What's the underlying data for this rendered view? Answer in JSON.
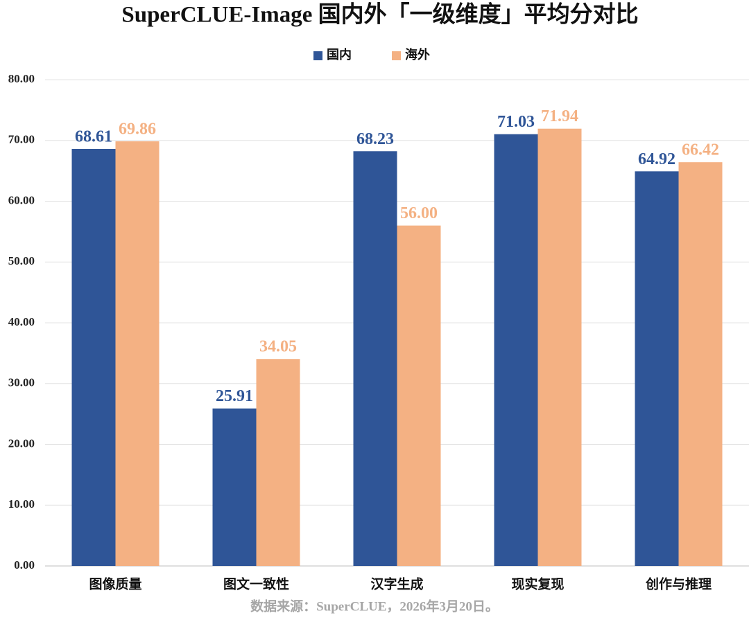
{
  "chart_data": {
    "type": "bar",
    "title": "SuperCLUE-Image 国内外「一级维度」平均分对比",
    "categories": [
      "图像质量",
      "图文一致性",
      "汉字生成",
      "现实复现",
      "创作与推理"
    ],
    "series": [
      {
        "name": "国内",
        "color": "#2f5597",
        "values": [
          68.61,
          25.91,
          68.23,
          71.03,
          64.92
        ],
        "value_labels": [
          "68.61",
          "25.91",
          "68.23",
          "71.03",
          "64.92"
        ]
      },
      {
        "name": "海外",
        "color": "#f4b183",
        "values": [
          69.86,
          34.05,
          56.0,
          71.94,
          66.42
        ],
        "value_labels": [
          "69.86",
          "34.05",
          "56.00",
          "71.94",
          "66.42"
        ]
      }
    ],
    "ylim": [
      0,
      80
    ],
    "yticks": [
      {
        "value": 0,
        "label": "0.00"
      },
      {
        "value": 10,
        "label": "10.00"
      },
      {
        "value": 20,
        "label": "20.00"
      },
      {
        "value": 30,
        "label": "30.00"
      },
      {
        "value": 40,
        "label": "40.00"
      },
      {
        "value": 50,
        "label": "50.00"
      },
      {
        "value": 60,
        "label": "60.00"
      },
      {
        "value": 70,
        "label": "70.00"
      },
      {
        "value": 80,
        "label": "80.00"
      }
    ],
    "grid": true,
    "legend": "top",
    "source": "数据来源：SuperCLUE，2026年3月20日。"
  }
}
